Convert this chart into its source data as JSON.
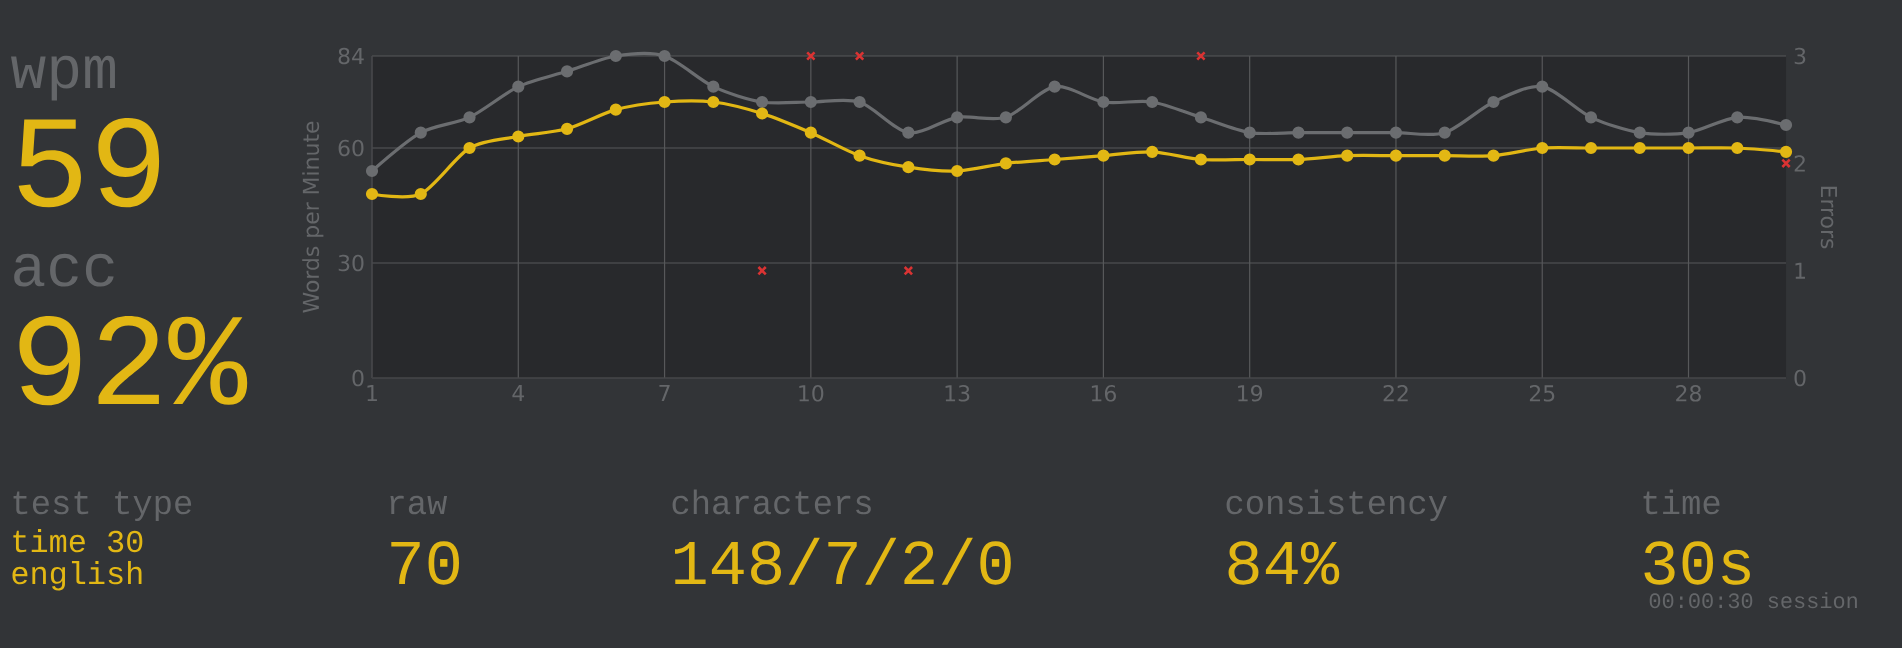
{
  "chart_data": [
    {
      "type": "other",
      "annotations": [
        "wpm",
        "59",
        "acc",
        "92%"
      ]
    },
    {
      "type": "line",
      "ylabel": "Words per Minute",
      "y2label": "Errors",
      "x": [
        1,
        2,
        3,
        4,
        5,
        6,
        7,
        8,
        9,
        10,
        11,
        12,
        13,
        14,
        15,
        16,
        17,
        18,
        19,
        20,
        21,
        22,
        23,
        24,
        25,
        26,
        27,
        28,
        29,
        30
      ],
      "xlim": [
        1,
        30
      ],
      "xticks": [
        1,
        4,
        7,
        10,
        13,
        16,
        19,
        22,
        25,
        28
      ],
      "ylim": [
        0,
        84
      ],
      "yticks": [
        0,
        30,
        60,
        84
      ],
      "y2lim": [
        0,
        3
      ],
      "y2ticks": [
        0,
        1,
        2,
        3
      ],
      "grid": true,
      "marker": "circle",
      "series": [
        {
          "color": "#6b6d70",
          "values": [
            54,
            64,
            68,
            76,
            80,
            84,
            84,
            76,
            72,
            72,
            72,
            64,
            68,
            68,
            76,
            72,
            72,
            68,
            64,
            64,
            64,
            64,
            64,
            72,
            76,
            68,
            64,
            64,
            68,
            66
          ]
        },
        {
          "color": "#e2b714",
          "values": [
            48,
            48,
            60,
            63,
            65,
            70,
            72,
            72,
            69,
            64,
            58,
            55,
            54,
            56,
            57,
            58,
            59,
            57,
            57,
            57,
            58,
            58,
            58,
            58,
            60,
            60,
            60,
            60,
            60,
            59
          ]
        },
        {
          "type": "scatter",
          "axis": "y2",
          "marker": "cross",
          "color": "#da3333",
          "x": [
            9,
            10,
            11,
            12,
            18,
            30
          ],
          "values": [
            1,
            3,
            3,
            1,
            3,
            2
          ]
        }
      ]
    },
    {
      "type": "other",
      "annotations": [
        "test type",
        "time 30",
        "english",
        "raw",
        "70",
        "characters",
        "148/7/2/0",
        "consistency",
        "84%",
        "time",
        "30s",
        "00:00:30 session"
      ]
    }
  ]
}
